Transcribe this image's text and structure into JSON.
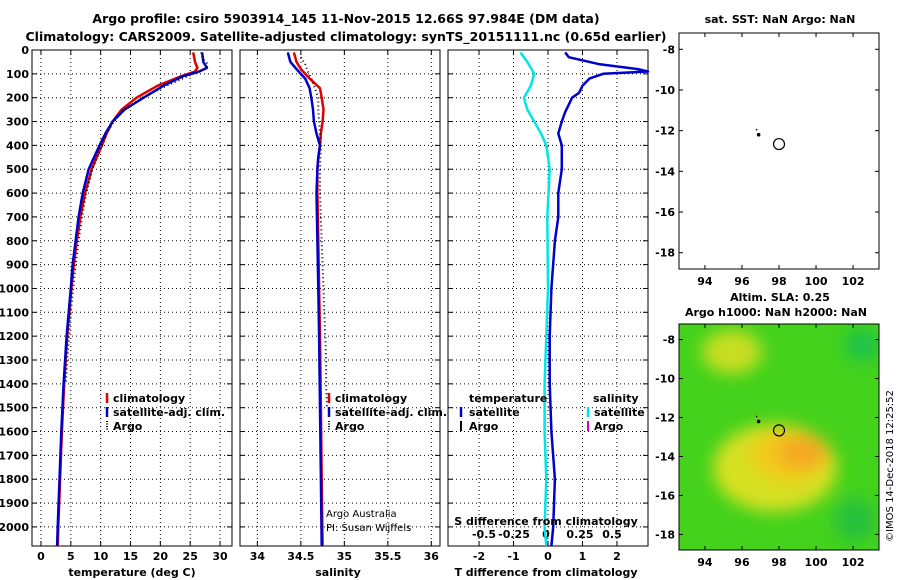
{
  "title": {
    "line1": "Argo profile: csiro 5903914_145 11-Nov-2015 12.66S 97.984E (DM data)",
    "line2": "Climatology: CARS2009. Satellite-adjusted climatology: synTS_20151111.nc (0.65d earlier)"
  },
  "colors": {
    "climatology": "#e00000",
    "satellite": "#0000cc",
    "argo": "#000000",
    "sat_salinity": "#00e5e5",
    "argo_salinity": "#cc00cc"
  },
  "chart_data": [
    {
      "type": "line",
      "name": "temperature-profile",
      "xlabel": "temperature (deg C)",
      "ylabel": "",
      "xlim": [
        -1.5,
        32
      ],
      "ylim": [
        2080,
        0
      ],
      "xticks": [
        0,
        5,
        10,
        15,
        20,
        25,
        30
      ],
      "yticks": [
        0,
        100,
        200,
        300,
        400,
        500,
        600,
        700,
        800,
        900,
        1000,
        1100,
        1200,
        1300,
        1400,
        1500,
        1600,
        1700,
        1800,
        1900,
        2000
      ],
      "legend": [
        "climatology",
        "satellite-adj. clim.",
        "Argo"
      ],
      "series": [
        {
          "name": "climatology",
          "style": "red-line",
          "depth": [
            10,
            50,
            75,
            90,
            110,
            150,
            200,
            250,
            300,
            350,
            400,
            500,
            600,
            700,
            800,
            900,
            1000,
            1200,
            1400,
            1600,
            1800,
            2000,
            2080
          ],
          "values": [
            25.5,
            25.8,
            26.2,
            25.8,
            23.5,
            19.5,
            16.0,
            13.5,
            12.0,
            11.0,
            10.2,
            8.5,
            7.4,
            6.6,
            6.0,
            5.5,
            5.1,
            4.4,
            3.9,
            3.5,
            3.2,
            2.9,
            2.8
          ]
        },
        {
          "name": "satellite-adj. clim.",
          "style": "blue-line",
          "depth": [
            10,
            50,
            75,
            90,
            110,
            150,
            200,
            250,
            300,
            350,
            400,
            500,
            600,
            700,
            800,
            900,
            1000,
            1200,
            1400,
            1600,
            1800,
            2000,
            2080
          ],
          "values": [
            27.0,
            27.2,
            27.8,
            26.5,
            23.8,
            20.5,
            17.2,
            14.0,
            12.0,
            10.8,
            9.8,
            8.0,
            7.0,
            6.3,
            5.8,
            5.3,
            5.0,
            4.3,
            3.8,
            3.4,
            3.1,
            2.8,
            2.7
          ]
        },
        {
          "name": "Argo",
          "style": "black-dots",
          "depth": [
            10,
            40,
            60,
            80,
            100,
            150,
            200,
            250,
            300,
            350,
            400,
            500,
            600,
            700,
            800,
            900,
            1000,
            1100,
            1200,
            1300,
            1400
          ],
          "values": [
            26.8,
            27.2,
            28.0,
            27.5,
            25.5,
            21.0,
            17.0,
            14.0,
            12.2,
            11.0,
            10.2,
            8.6,
            7.6,
            6.9,
            6.3,
            5.8,
            5.4,
            5.0,
            4.7,
            4.4,
            4.2
          ]
        }
      ]
    },
    {
      "type": "line",
      "name": "salinity-profile",
      "xlabel": "salinity",
      "ylabel": "",
      "xlim": [
        33.8,
        36.1
      ],
      "ylim": [
        2080,
        0
      ],
      "xticks": [
        34,
        34.5,
        35,
        35.5,
        36
      ],
      "legend": [
        "climatology",
        "satellite-adj. clim.",
        "Argo"
      ],
      "series": [
        {
          "name": "climatology",
          "style": "red-line",
          "depth": [
            10,
            50,
            80,
            120,
            160,
            200,
            250,
            300,
            350,
            400,
            450,
            500,
            600,
            800,
            1000,
            1200,
            1500,
            1800,
            2080
          ],
          "values": [
            34.42,
            34.45,
            34.5,
            34.6,
            34.72,
            34.74,
            34.76,
            34.75,
            34.73,
            34.72,
            34.7,
            34.69,
            34.69,
            34.7,
            34.71,
            34.72,
            34.73,
            34.74,
            34.75
          ]
        },
        {
          "name": "satellite-adj. clim.",
          "style": "blue-line",
          "depth": [
            10,
            50,
            80,
            120,
            160,
            200,
            250,
            300,
            350,
            400,
            450,
            500,
            600,
            800,
            1000,
            1200,
            1500,
            1800,
            2080
          ],
          "values": [
            34.35,
            34.38,
            34.45,
            34.55,
            34.6,
            34.62,
            34.64,
            34.65,
            34.68,
            34.72,
            34.7,
            34.69,
            34.68,
            34.69,
            34.7,
            34.71,
            34.72,
            34.73,
            34.74
          ]
        },
        {
          "name": "Argo",
          "style": "black-dots",
          "depth": [
            30,
            60,
            90,
            120,
            160,
            200,
            250,
            300,
            350,
            400,
            500,
            600,
            700,
            800,
            900,
            1000,
            1100,
            1200,
            1300,
            1400,
            1500
          ],
          "values": [
            34.5,
            34.55,
            34.58,
            34.62,
            34.66,
            34.7,
            34.7,
            34.71,
            34.72,
            34.73,
            34.72,
            34.72,
            34.73,
            34.74,
            34.75,
            34.76,
            34.77,
            34.78,
            34.79,
            34.79,
            34.8
          ]
        }
      ],
      "notes": [
        "Argo Australia",
        "PI: Susan Wijffels"
      ]
    },
    {
      "type": "line",
      "name": "difference-profile",
      "xlabel": "T difference from climatology",
      "xlabel2": "S difference from climatology",
      "xlim": [
        -2.9,
        2.9
      ],
      "ylim": [
        2080,
        0
      ],
      "xticks": [
        -2,
        -1,
        0,
        1,
        2
      ],
      "xticks_s": [
        "-0.5",
        "-0.25",
        "0",
        "0.25",
        "0.5"
      ],
      "legend_headers": [
        "temperature",
        "salinity"
      ],
      "legend": [
        "satellite",
        "Argo",
        "satellite",
        "Argo"
      ],
      "series": [
        {
          "name": "temperature satellite",
          "style": "blue-line",
          "depth": [
            10,
            30,
            60,
            80,
            90,
            100,
            120,
            150,
            180,
            200,
            230,
            260,
            300,
            350,
            400,
            500,
            600,
            700,
            800,
            1000,
            1200,
            1400,
            1600,
            1800,
            2000,
            2080
          ],
          "values": [
            0.5,
            0.6,
            1.5,
            2.6,
            2.9,
            1.6,
            1.2,
            1.0,
            0.9,
            0.7,
            0.6,
            0.5,
            0.4,
            0.3,
            0.4,
            0.4,
            0.3,
            0.3,
            0.2,
            0.1,
            0.05,
            0.05,
            0.1,
            0.2,
            0.15,
            0.1
          ]
        },
        {
          "name": "salinity satellite",
          "style": "cyan-line",
          "depth": [
            10,
            50,
            100,
            150,
            200,
            250,
            300,
            350,
            400,
            500,
            700,
            1000,
            1200,
            1400,
            1600,
            1800,
            2000,
            2080
          ],
          "values": [
            -0.8,
            -0.6,
            -0.4,
            -0.5,
            -0.7,
            -0.6,
            -0.4,
            -0.2,
            -0.05,
            0.05,
            -0.02,
            0.0,
            -0.05,
            -0.1,
            -0.1,
            -0.05,
            -0.1,
            -0.05
          ]
        }
      ]
    },
    {
      "type": "scatter",
      "name": "sst-map",
      "title": "sat. SST: NaN Argo: NaN",
      "xlim": [
        92.6,
        103.4
      ],
      "ylim": [
        -18.8,
        -7.2
      ],
      "xticks": [
        94,
        96,
        98,
        100,
        102
      ],
      "yticks": [
        -8,
        -10,
        -12,
        -14,
        -16,
        -18
      ],
      "points": [
        {
          "lon": 98.0,
          "lat": -12.66,
          "marker": "circle"
        },
        {
          "lon": 96.9,
          "lat": -12.2,
          "marker": "dot"
        }
      ]
    },
    {
      "type": "heatmap",
      "name": "sla-map",
      "title": "Altim. SLA: 0.25",
      "subtitle": "Argo h1000: NaN h2000: NaN",
      "xlim": [
        92.6,
        103.4
      ],
      "ylim": [
        -18.8,
        -7.2
      ],
      "xticks": [
        94,
        96,
        98,
        100,
        102
      ],
      "yticks": [
        -8,
        -10,
        -12,
        -14,
        -16,
        -18
      ],
      "points": [
        {
          "lon": 98.0,
          "lat": -12.66,
          "marker": "circle"
        },
        {
          "lon": 96.9,
          "lat": -12.2,
          "marker": "dot"
        }
      ]
    }
  ],
  "credit": "©IMOS 14-Dec-2018 12:25:52"
}
